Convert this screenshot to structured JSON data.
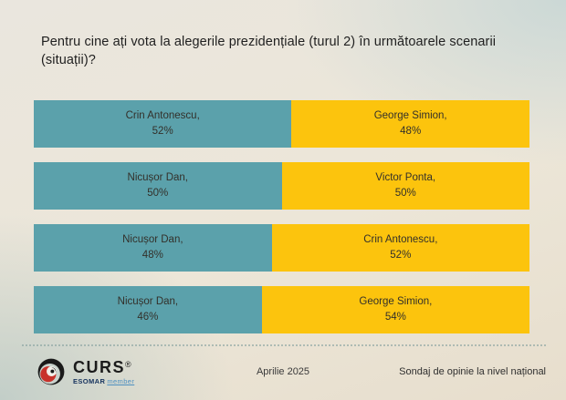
{
  "chart_data": {
    "type": "bar",
    "orientation": "horizontal",
    "stacked": true,
    "unit": "%",
    "xlim": [
      0,
      100
    ],
    "legend": false,
    "grid": false,
    "title": "Pentru cine ați vota la alegerile prezidențiale (turul 2) în următoarele scenarii (situații)?",
    "colors": {
      "left": "#5ba1ab",
      "right": "#fcc40d"
    },
    "rows": [
      {
        "left_name": "Crin Antonescu",
        "left_value": 52,
        "right_name": "George Simion",
        "right_value": 48
      },
      {
        "left_name": "Nicușor Dan",
        "left_value": 50,
        "right_name": "Victor Ponta",
        "right_value": 50
      },
      {
        "left_name": "Nicușor Dan",
        "left_value": 48,
        "right_name": "Crin Antonescu",
        "right_value": 52
      },
      {
        "left_name": "Nicușor Dan",
        "left_value": 46,
        "right_name": "George Simion",
        "right_value": 54
      }
    ]
  },
  "footer": {
    "logo_text": "CURS",
    "logo_reg": "®",
    "esomar": "ESOMAR",
    "esomar_member": "member",
    "date": "Aprilie 2025",
    "note": "Sondaj de opinie la nivel național"
  }
}
